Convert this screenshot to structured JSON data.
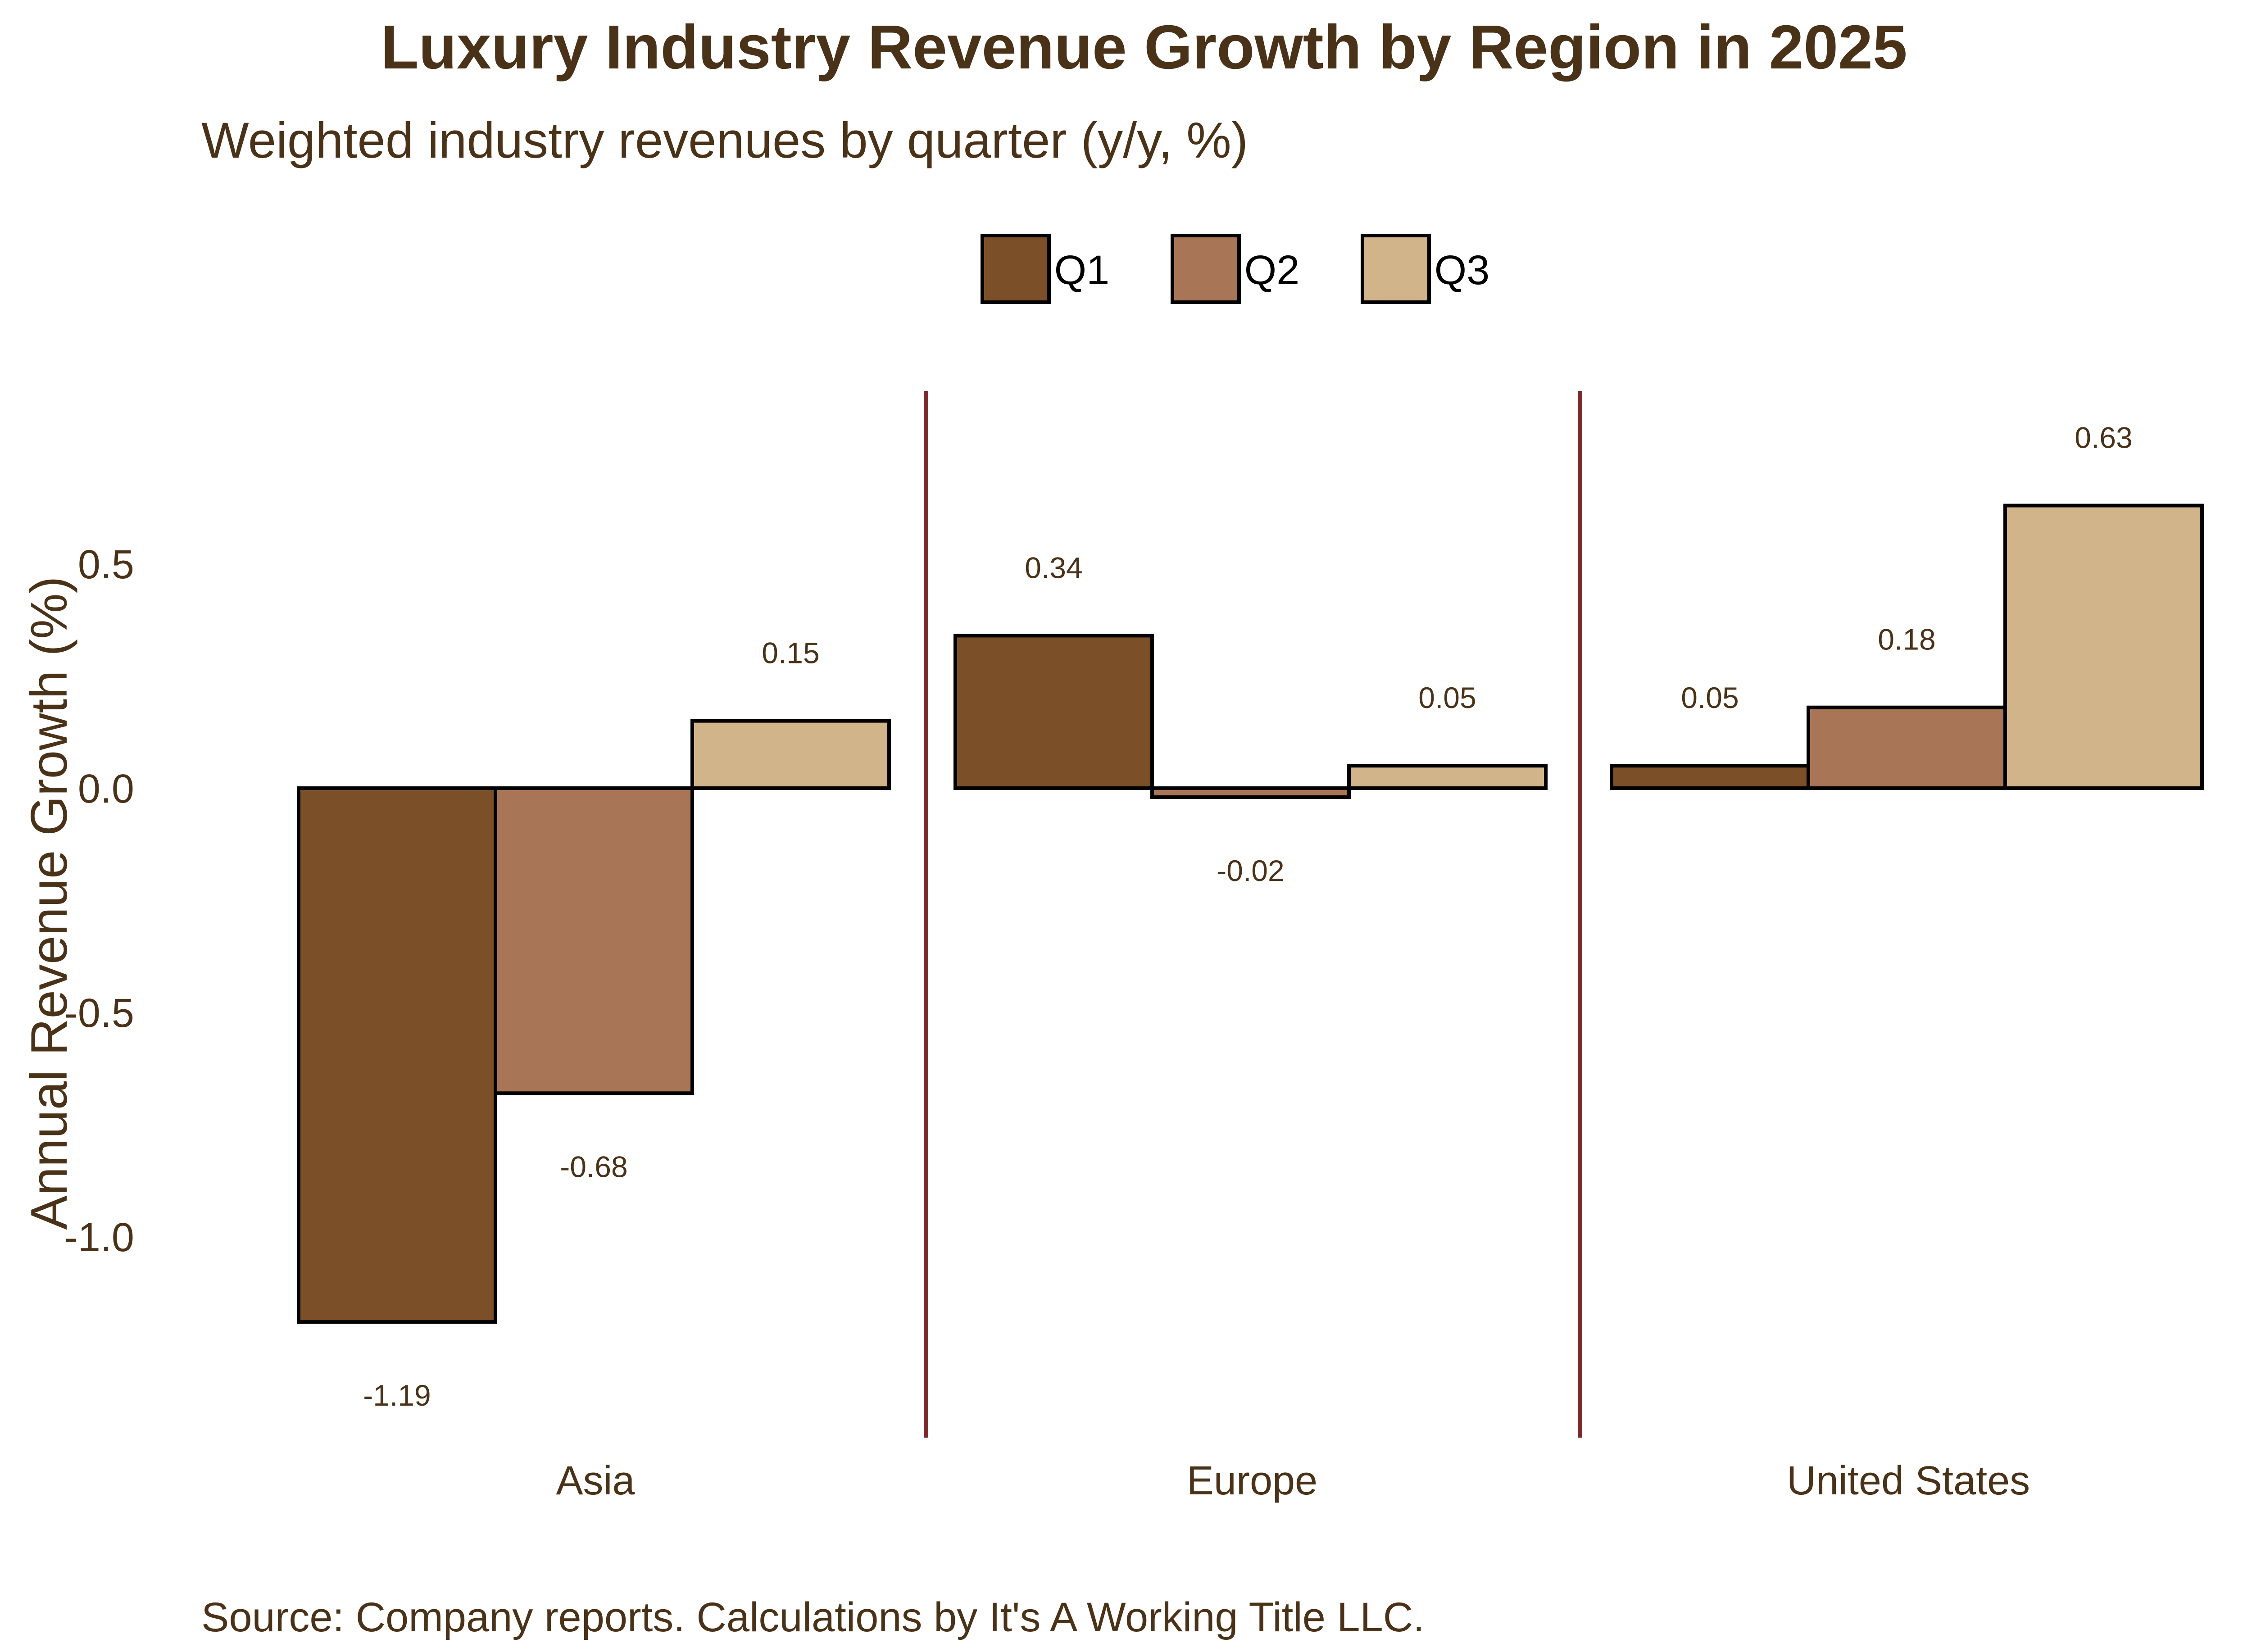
{
  "chart_data": {
    "type": "bar",
    "title": "Luxury Industry Revenue Growth by Region in 2025",
    "subtitle": "Weighted industry revenues by quarter (y/y, %)",
    "caption": "Source: Company reports. Calculations by It's A Working Title LLC.",
    "xlabel": "",
    "ylabel": "Annual Revenue Growth (%)",
    "ylim": [
      -1.4,
      0.9
    ],
    "yticks": [
      0.5,
      0.0,
      -0.5,
      -1.0
    ],
    "ytick_labels": [
      "0.5",
      "0.0",
      "-0.5",
      "-1.0"
    ],
    "categories": [
      "Asia",
      "Europe",
      "United States"
    ],
    "series": [
      {
        "name": "Q1",
        "color": "#7b4f28",
        "values": [
          -1.19,
          0.34,
          0.05
        ],
        "labels": [
          "-1.19",
          "0.34",
          "0.05"
        ]
      },
      {
        "name": "Q2",
        "color": "#a87656",
        "values": [
          -0.68,
          -0.02,
          0.18
        ],
        "labels": [
          "-0.68",
          "-0.02",
          "0.18"
        ]
      },
      {
        "name": "Q3",
        "color": "#d2b48b",
        "values": [
          0.15,
          0.05,
          0.63
        ],
        "labels": [
          "0.15",
          "0.05",
          "0.63"
        ]
      }
    ],
    "legend_position": "top",
    "grid": false,
    "colors": {
      "text": "#4a3218",
      "separator": "#7b2828",
      "bar_outline": "#000000",
      "legend_text": "#000000"
    }
  }
}
